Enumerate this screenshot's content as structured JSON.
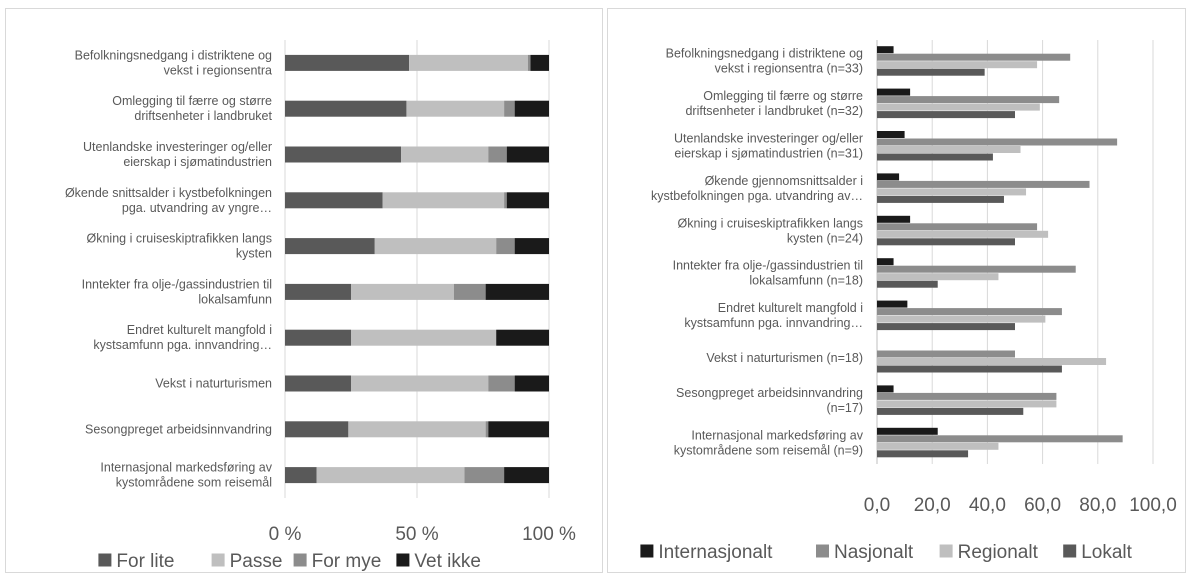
{
  "chart_data": [
    {
      "type": "bar",
      "orientation": "horizontal",
      "stacked": "percent",
      "categories": [
        [
          "Befolkningsnedgang i distriktene og",
          "vekst i regionsentra"
        ],
        [
          "Omlegging til færre og større",
          "driftsenheter i landbruket"
        ],
        [
          "Utenlandske investeringer og/eller",
          "eierskap i sjømatindustrien"
        ],
        [
          "Økende snittsalder i kystbefolkningen",
          "pga. utvandring av yngre…"
        ],
        [
          "Økning i cruiseskiptrafikken langs",
          "kysten"
        ],
        [
          "Inntekter fra olje-/gassindustrien til",
          "lokalsamfunn"
        ],
        [
          "Endret kulturelt mangfold i",
          "kystsamfunn pga. innvandring…"
        ],
        [
          "Vekst i naturturismen"
        ],
        [
          "Sesongpreget arbeidsinnvandring"
        ],
        [
          "Internasjonal markedsføring av",
          "kystområdene som reisemål"
        ]
      ],
      "series": [
        {
          "name": "For lite",
          "color": "#595959",
          "values": [
            47,
            46,
            44,
            37,
            34,
            25,
            25,
            25,
            24,
            12
          ]
        },
        {
          "name": "Passe",
          "color": "#bfbfbf",
          "values": [
            45,
            37,
            33,
            46,
            46,
            39,
            55,
            52,
            52,
            56
          ]
        },
        {
          "name": "For mye",
          "color": "#8c8c8c",
          "values": [
            1,
            4,
            7,
            1,
            7,
            12,
            0,
            10,
            1,
            15
          ]
        },
        {
          "name": "Vet ikke",
          "color": "#1a1a1a",
          "values": [
            7,
            13,
            16,
            16,
            13,
            24,
            20,
            13,
            23,
            17
          ]
        }
      ],
      "xticks": [
        "0 %",
        "50 %",
        "100 %"
      ],
      "xlim": [
        0,
        100
      ],
      "grid": true,
      "legend_position": "bottom"
    },
    {
      "type": "bar",
      "orientation": "horizontal",
      "categories": [
        [
          "Befolkningsnedgang i distriktene og",
          "vekst i regionsentra (n=33)"
        ],
        [
          "Omlegging til færre og større",
          "driftsenheter i landbruket (n=32)"
        ],
        [
          "Utenlandske investeringer og/eller",
          "eierskap i sjømatindustrien (n=31)"
        ],
        [
          "Økende gjennomsnittsalder i",
          "kystbefolkningen pga. utvandring av…"
        ],
        [
          "Økning i cruiseskiptrafikken langs",
          "kysten (n=24)"
        ],
        [
          "Inntekter fra olje-/gassindustrien til",
          "lokalsamfunn (n=18)"
        ],
        [
          "Endret kulturelt mangfold i",
          "kystsamfunn pga. innvandring…"
        ],
        [
          "Vekst i naturturismen (n=18)"
        ],
        [
          "Sesongpreget arbeidsinnvandring",
          "(n=17)"
        ],
        [
          "Internasjonal markedsføring av",
          "kystområdene som reisemål (n=9)"
        ]
      ],
      "series": [
        {
          "name": "Internasjonalt",
          "color": "#1a1a1a",
          "values": [
            6,
            12,
            10,
            8,
            12,
            6,
            11,
            0,
            6,
            22
          ]
        },
        {
          "name": "Nasjonalt",
          "color": "#8c8c8c",
          "values": [
            70,
            66,
            87,
            77,
            58,
            72,
            67,
            50,
            65,
            89
          ]
        },
        {
          "name": "Regionalt",
          "color": "#bfbfbf",
          "values": [
            58,
            59,
            52,
            54,
            62,
            44,
            61,
            83,
            65,
            44
          ]
        },
        {
          "name": "Lokalt",
          "color": "#595959",
          "values": [
            39,
            50,
            42,
            46,
            50,
            22,
            50,
            67,
            53,
            33
          ]
        }
      ],
      "xticks": [
        "0,0",
        "20,0",
        "40,0",
        "60,0",
        "80,0",
        "100,0"
      ],
      "xlim": [
        0,
        100
      ],
      "grid": true,
      "legend_position": "bottom"
    }
  ]
}
